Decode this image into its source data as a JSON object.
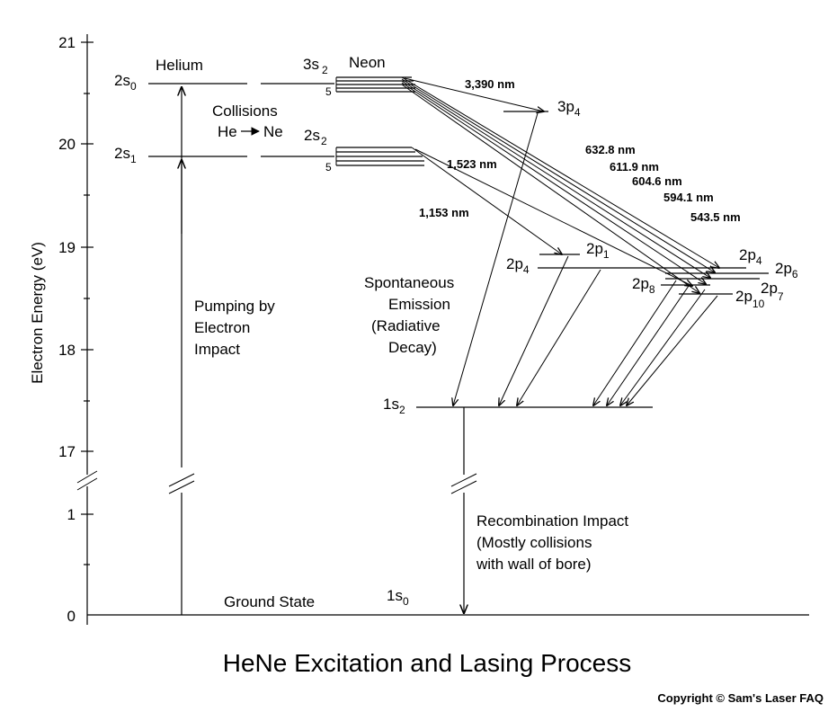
{
  "title": "HeNe Excitation and Lasing Process",
  "copyright": "Copyright © Sam's Laser FAQ",
  "y_axis": {
    "label": "Electron Energy (eV)",
    "ticks": [
      "21",
      "20",
      "19",
      "18",
      "17",
      "1",
      "0"
    ]
  },
  "helium": {
    "heading": "Helium",
    "level_2s0": {
      "base": "2s",
      "sub": "0"
    },
    "level_2s1": {
      "base": "2s",
      "sub": "1"
    },
    "pumping": [
      "Pumping by",
      "Electron",
      "Impact"
    ],
    "collisions": [
      "Collisions",
      "He",
      "Ne"
    ]
  },
  "neon": {
    "heading": "Neon",
    "level_3s2": {
      "base": "3s",
      "sub": "2"
    },
    "level_2s2": {
      "base": "2s",
      "sub": "2"
    },
    "multiplicity": "5",
    "level_3p4": {
      "base": "3p",
      "sub": "4"
    },
    "level_2p1": {
      "base": "2p",
      "sub": "1"
    },
    "level_2p4_left": {
      "base": "2p",
      "sub": "4"
    },
    "level_2p4_right": {
      "base": "2p",
      "sub": "4"
    },
    "level_2p6": {
      "base": "2p",
      "sub": "6"
    },
    "level_2p7": {
      "base": "2p",
      "sub": "7"
    },
    "level_2p8": {
      "base": "2p",
      "sub": "8"
    },
    "level_2p10": {
      "base": "2p",
      "sub": "10"
    },
    "level_1s2": {
      "base": "1s",
      "sub": "2"
    },
    "level_1s0": {
      "base": "1s",
      "sub": "0"
    },
    "spontaneous": [
      "Spontaneous",
      "Emission",
      "(Radiative",
      "Decay)"
    ],
    "recombination": [
      "Recombination Impact",
      "(Mostly collisions",
      "with wall of bore)"
    ],
    "ground_state": "Ground State"
  },
  "wavelengths": [
    {
      "label": "3,390 nm",
      "color": "#000000"
    },
    {
      "label": "632.8 nm",
      "color": "#cc2200"
    },
    {
      "label": "611.9 nm",
      "color": "#e07a28"
    },
    {
      "label": "604.6 nm",
      "color": "#f0a020"
    },
    {
      "label": "594.1 nm",
      "color": "#e8d000"
    },
    {
      "label": "543.5 nm",
      "color": "#00a000"
    },
    {
      "label": "1,523 nm",
      "color": "#8b0000"
    },
    {
      "label": "1,153 nm",
      "color": "#8b5a14"
    }
  ]
}
